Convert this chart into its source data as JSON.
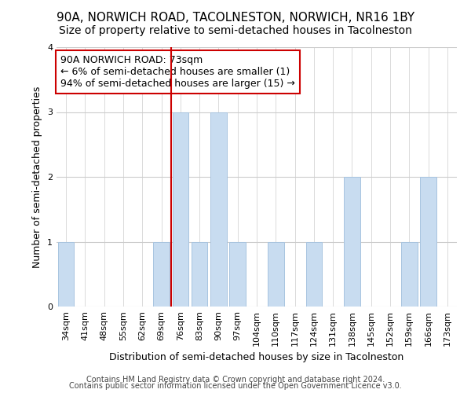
{
  "title": "90A, NORWICH ROAD, TACOLNESTON, NORWICH, NR16 1BY",
  "subtitle": "Size of property relative to semi-detached houses in Tacolneston",
  "xlabel": "Distribution of semi-detached houses by size in Tacolneston",
  "ylabel": "Number of semi-detached properties",
  "categories": [
    "34sqm",
    "41sqm",
    "48sqm",
    "55sqm",
    "62sqm",
    "69sqm",
    "76sqm",
    "83sqm",
    "90sqm",
    "97sqm",
    "104sqm",
    "110sqm",
    "117sqm",
    "124sqm",
    "131sqm",
    "138sqm",
    "145sqm",
    "152sqm",
    "159sqm",
    "166sqm",
    "173sqm"
  ],
  "values": [
    1,
    0,
    0,
    0,
    0,
    1,
    3,
    1,
    3,
    1,
    0,
    1,
    0,
    1,
    0,
    2,
    0,
    0,
    1,
    2,
    0
  ],
  "bar_color": "#c8dcf0",
  "bar_edge_color": "#a8c4e0",
  "vline_x": 5.5,
  "annotation_line1": "90A NORWICH ROAD: 73sqm",
  "annotation_line2": "← 6% of semi-detached houses are smaller (1)",
  "annotation_line3": "94% of semi-detached houses are larger (15) →",
  "ylim": [
    0,
    4
  ],
  "yticks": [
    0,
    1,
    2,
    3,
    4
  ],
  "footnote1": "Contains HM Land Registry data © Crown copyright and database right 2024.",
  "footnote2": "Contains public sector information licensed under the Open Government Licence v3.0.",
  "background_color": "#ffffff",
  "plot_bg_color": "#ffffff",
  "grid_color": "#cccccc",
  "vline_color": "#cc0000",
  "annotation_box_color": "#cc0000",
  "title_fontsize": 11,
  "subtitle_fontsize": 10,
  "xlabel_fontsize": 9,
  "ylabel_fontsize": 9,
  "tick_fontsize": 8,
  "annotation_fontsize": 9
}
